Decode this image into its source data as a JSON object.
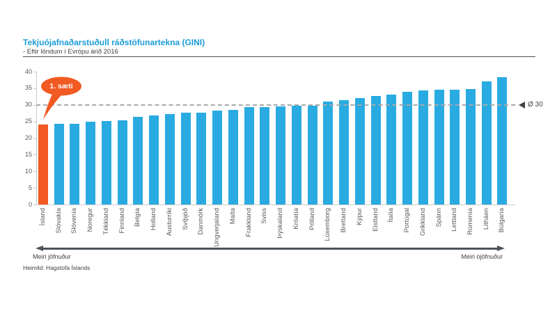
{
  "chart_data": {
    "type": "bar",
    "title": "Tekjuójafnaðarstuðull ráðstöfunartekna (GINI)",
    "subtitle": "- Eftir löndum í Evrópu árið 2016",
    "categories": [
      "Ísland",
      "Slóvakía",
      "Slóvenía",
      "Noregur",
      "Tékkland",
      "Finnland",
      "Belgía",
      "Holland",
      "Austurríki",
      "Svíþjóð",
      "Danmörk",
      "Ungverjaland",
      "Malta",
      "Frakkland",
      "Sviss",
      "Þýskaland",
      "Króatía",
      "Pólland",
      "Lúxemborg",
      "Bretland",
      "Kýpur",
      "Eistland",
      "Ítalía",
      "Portúgal",
      "Grikkland",
      "Spánn",
      "Lettland",
      "Rúmenía",
      "Litháen",
      "Búlgaría"
    ],
    "values": [
      24.1,
      24.3,
      24.4,
      25.0,
      25.1,
      25.4,
      26.3,
      26.9,
      27.2,
      27.6,
      27.7,
      28.2,
      28.5,
      29.3,
      29.4,
      29.5,
      29.8,
      29.8,
      31.0,
      31.5,
      32.1,
      32.7,
      33.1,
      33.9,
      34.3,
      34.5,
      34.5,
      34.7,
      37.0,
      38.3
    ],
    "ylim": [
      0,
      40
    ],
    "yticks": [
      0,
      5,
      10,
      15,
      20,
      25,
      30,
      35,
      40
    ],
    "grid": "off",
    "legend": "none",
    "bar_color": "#29ABE2",
    "highlight_index": 0,
    "highlight_color": "#F15A22",
    "annotation": "1. sæti",
    "reference_line": {
      "value": 30,
      "label": "Ø 30"
    },
    "x_arrow": {
      "left_label": "Meiri jöfnuður",
      "right_label": "Meiri ójöfnuður"
    },
    "source": "Heimild: Hagstofa Íslands"
  }
}
